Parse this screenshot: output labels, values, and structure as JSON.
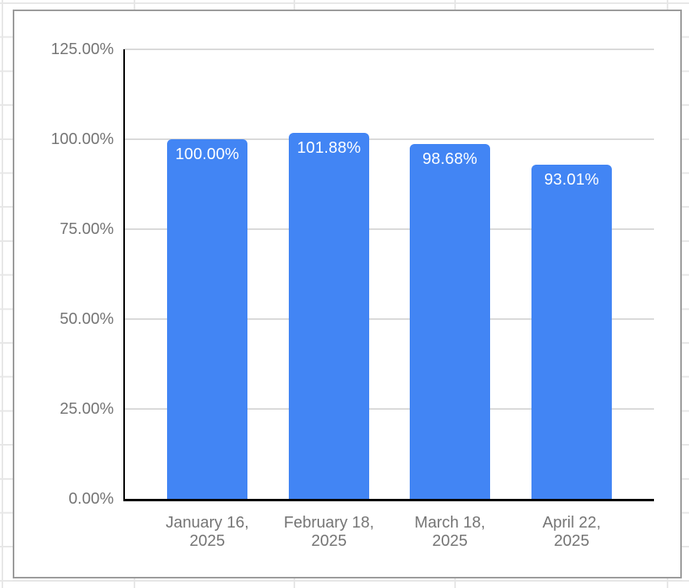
{
  "chart_data": {
    "type": "bar",
    "title": "",
    "categories": [
      "January 16, 2025",
      "February 18, 2025",
      "March 18, 2025",
      "April 22, 2025"
    ],
    "category_lines": [
      [
        "January 16,",
        "2025"
      ],
      [
        "February 18,",
        "2025"
      ],
      [
        "March 18,",
        "2025"
      ],
      [
        "April 22,",
        "2025"
      ]
    ],
    "values": [
      100.0,
      101.88,
      98.68,
      93.01
    ],
    "data_labels": [
      "100.00%",
      "101.88%",
      "98.68%",
      "93.01%"
    ],
    "y_ticks": [
      "125.00%",
      "100.00%",
      "75.00%",
      "50.00%",
      "25.00%",
      "0.00%"
    ],
    "y_tick_values": [
      125,
      100,
      75,
      50,
      25,
      0
    ],
    "ylim": [
      0,
      125
    ],
    "xlabel": "",
    "ylabel": "",
    "legend": "none",
    "grid_on": true,
    "bar_color": "#4285f4",
    "data_label_color": "#ffffff",
    "axis_text_color": "#757575",
    "axis_line_color": "#000000",
    "gridline_color": "#d9d9d9"
  }
}
